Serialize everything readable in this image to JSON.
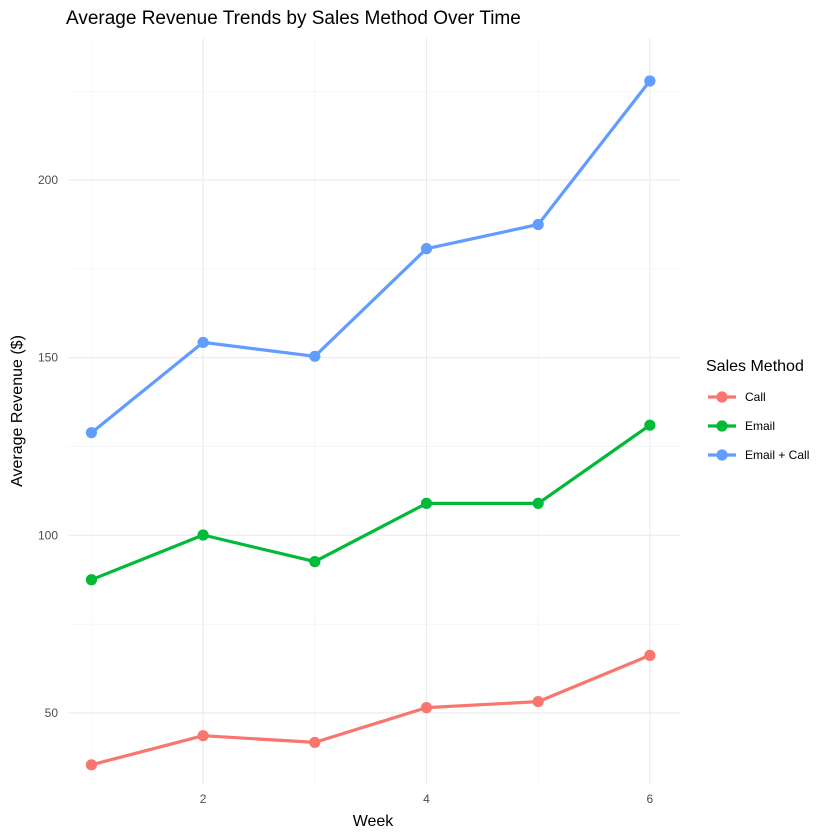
{
  "chart_data": {
    "type": "line",
    "title": "Average Revenue Trends by Sales Method Over Time",
    "xlabel": "Week",
    "ylabel": "Average Revenue ($)",
    "x": [
      1,
      2,
      3,
      4,
      5,
      6
    ],
    "x_ticks": [
      2,
      4,
      6
    ],
    "x_tick_labels": [
      "2",
      "4",
      "6"
    ],
    "xlim": [
      0.79,
      6.27
    ],
    "y_ticks": [
      50,
      100,
      150,
      200
    ],
    "y_tick_labels": [
      "50",
      "100",
      "150",
      "200"
    ],
    "ylim": [
      30,
      240
    ],
    "grid": true,
    "legend": {
      "title": "Sales Method",
      "position": "right"
    },
    "series": [
      {
        "name": "Call",
        "color": "#F8766D",
        "values": [
          35.4,
          43.6,
          41.7,
          51.5,
          53.2,
          66.2
        ]
      },
      {
        "name": "Email",
        "color": "#00BA38",
        "values": [
          87.5,
          100.1,
          92.6,
          109.0,
          109.0,
          131.0
        ]
      },
      {
        "name": "Email + Call",
        "color": "#619CFF",
        "values": [
          128.9,
          154.3,
          150.4,
          180.7,
          187.5,
          227.9
        ]
      }
    ]
  }
}
